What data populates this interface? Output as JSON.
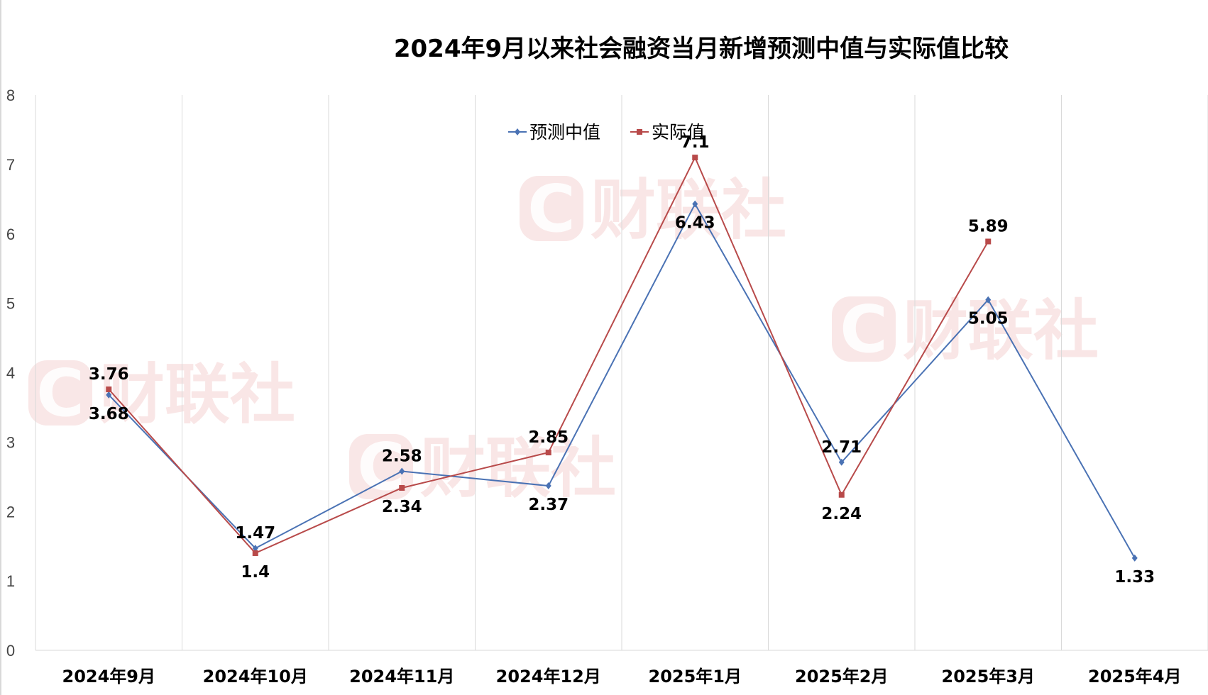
{
  "chart_data": {
    "type": "line",
    "title": "2024年9月以来社会融资当月新增预测中值与实际值比较",
    "categories": [
      "2024年9月",
      "2024年10月",
      "2024年11月",
      "2024年12月",
      "2025年1月",
      "2025年2月",
      "2025年3月",
      "2025年4月"
    ],
    "series": [
      {
        "name": "预测中值",
        "color": "#4a72b4",
        "marker": "diamond",
        "values": [
          3.68,
          1.47,
          2.58,
          2.37,
          6.43,
          2.71,
          5.05,
          1.33
        ]
      },
      {
        "name": "实际值",
        "color": "#b84a4a",
        "marker": "square",
        "values": [
          3.76,
          1.4,
          2.34,
          2.85,
          7.1,
          2.24,
          5.89,
          null
        ]
      }
    ],
    "ylim": [
      0,
      8
    ],
    "yticks": [
      0,
      1,
      2,
      3,
      4,
      5,
      6,
      7,
      8
    ],
    "grid": "vertical",
    "legend": "top-center"
  },
  "watermark": {
    "text": "财联社",
    "letter": "C"
  }
}
